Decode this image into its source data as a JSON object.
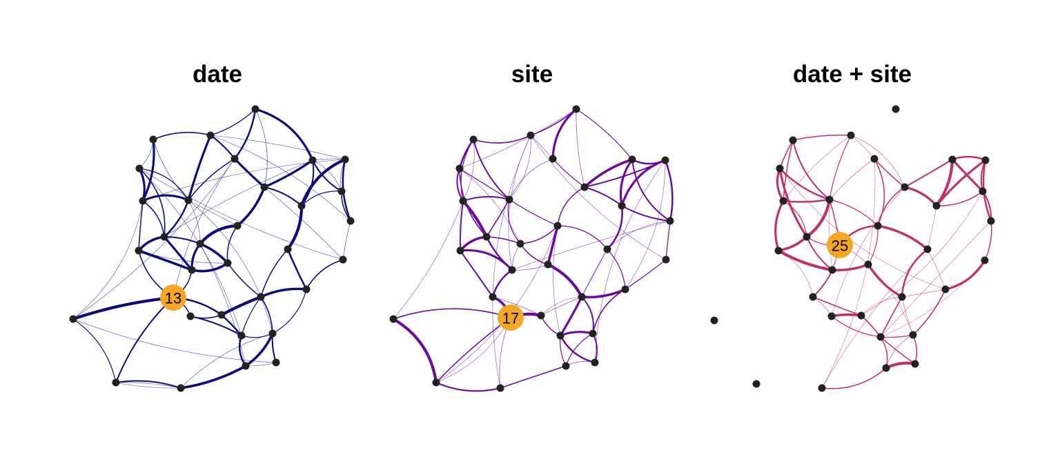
{
  "colors": {
    "node": "#222222",
    "highlight": "#f5a623"
  },
  "panels": [
    {
      "title": "date",
      "edge_color": "#0e0a7d",
      "highlight_label": "13"
    },
    {
      "title": "site",
      "edge_color": "#6a0a9f",
      "highlight_label": "17"
    },
    {
      "title": "date + site",
      "edge_color": "#c0306a",
      "highlight_label": "25"
    }
  ]
}
